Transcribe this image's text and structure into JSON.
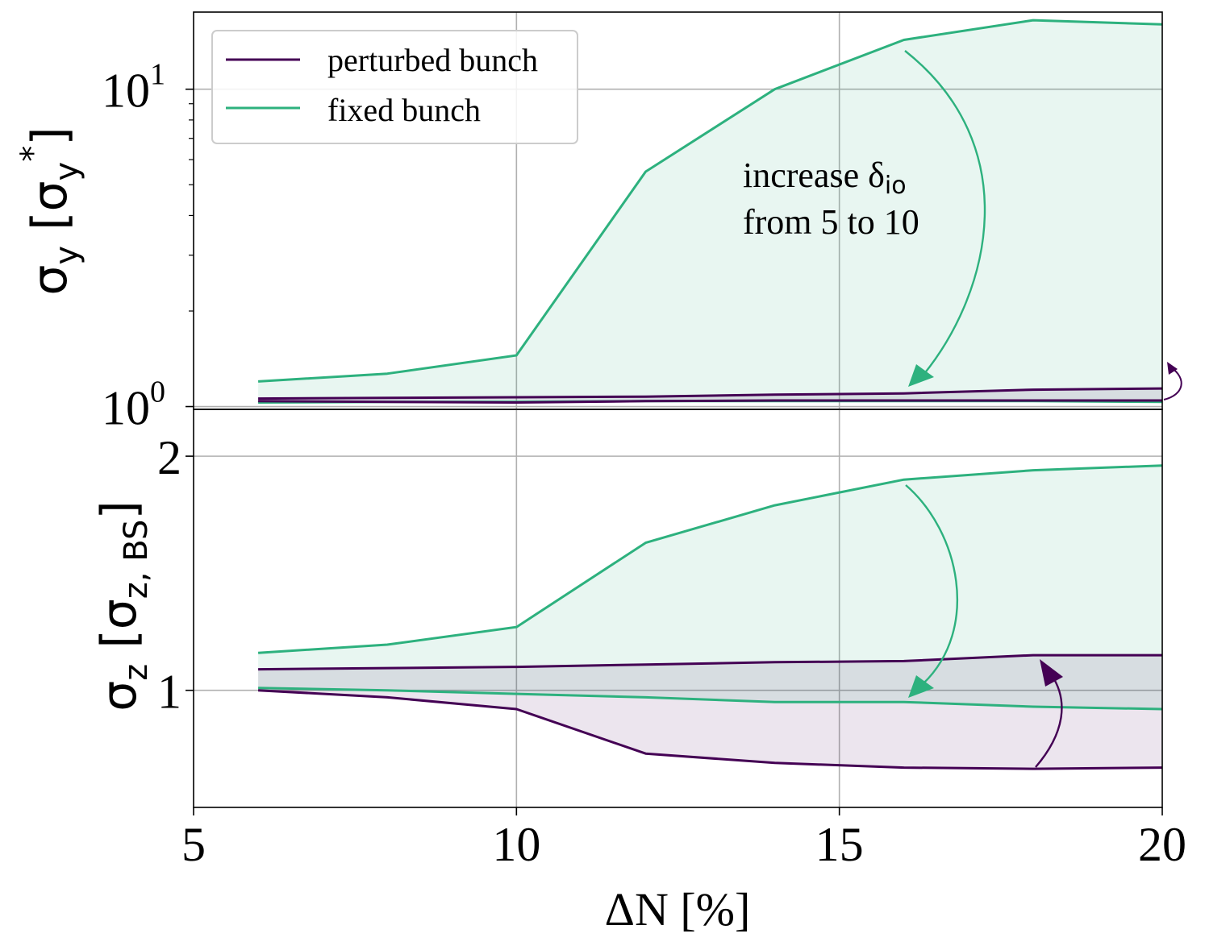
{
  "colors": {
    "perturbed": "#440154",
    "fixed": "#2db17e",
    "grid": "#b0b0b0"
  },
  "legend": {
    "perturbed_label": "perturbed bunch",
    "fixed_label": "fixed bunch"
  },
  "annotation": {
    "line1_prefix": "increase δ",
    "line1_sub": "io",
    "line2": "from 5 to 10"
  },
  "chart_data": [
    {
      "type": "area",
      "panel": "top",
      "ylabel_main": "σ",
      "ylabel_sub": "y",
      "ylabel_bracket_open": " [σ",
      "ylabel_bracket_sub": "y",
      "ylabel_bracket_sup": "*",
      "ylabel_bracket_close": "]",
      "yscale": "log",
      "ylim": [
        0.98,
        17.5
      ],
      "xlim": [
        5,
        20
      ],
      "yticks": [
        {
          "value": 1,
          "base": "10",
          "exp": "0"
        },
        {
          "value": 10,
          "base": "10",
          "exp": "1"
        }
      ],
      "grid": true,
      "legend_position": "upper-left",
      "series": [
        {
          "name": "perturbed bunch",
          "x": [
            6,
            8,
            10,
            12,
            14,
            16,
            18,
            20
          ],
          "upper": [
            1.06,
            1.065,
            1.07,
            1.075,
            1.09,
            1.1,
            1.13,
            1.14
          ],
          "lower": [
            1.04,
            1.035,
            1.03,
            1.04,
            1.045,
            1.045,
            1.045,
            1.045
          ]
        },
        {
          "name": "fixed bunch",
          "x": [
            6,
            8,
            10,
            12,
            14,
            16,
            18,
            20
          ],
          "upper": [
            1.2,
            1.27,
            1.45,
            5.5,
            10.0,
            14.3,
            16.5,
            16.0
          ],
          "lower": [
            1.03,
            1.035,
            1.035,
            1.04,
            1.04,
            1.04,
            1.04,
            1.035
          ]
        }
      ]
    },
    {
      "type": "area",
      "panel": "bottom",
      "ylabel_main": "σ",
      "ylabel_sub": "z",
      "ylabel_bracket_open": " [σ",
      "ylabel_bracket_sub": "z, BS",
      "ylabel_bracket_close": "]",
      "yscale": "linear",
      "ylim": [
        0.5,
        2.2
      ],
      "xlim": [
        5,
        20
      ],
      "xlabel": "ΔN [%]",
      "xticks": [
        "5",
        "10",
        "15",
        "20"
      ],
      "yticks": [
        {
          "value": 1,
          "label": "1"
        },
        {
          "value": 2,
          "label": "2"
        }
      ],
      "grid": true,
      "series": [
        {
          "name": "perturbed bunch",
          "x": [
            6,
            8,
            10,
            12,
            14,
            16,
            18,
            20
          ],
          "upper": [
            1.09,
            1.095,
            1.1,
            1.11,
            1.12,
            1.125,
            1.15,
            1.15
          ],
          "lower": [
            1.0,
            0.97,
            0.92,
            0.73,
            0.69,
            0.67,
            0.665,
            0.67
          ]
        },
        {
          "name": "fixed bunch",
          "x": [
            6,
            8,
            10,
            12,
            14,
            16,
            18,
            20
          ],
          "upper": [
            1.16,
            1.195,
            1.27,
            1.63,
            1.79,
            1.9,
            1.94,
            1.96
          ],
          "lower": [
            1.01,
            1.0,
            0.985,
            0.97,
            0.95,
            0.95,
            0.93,
            0.92
          ]
        }
      ]
    }
  ]
}
